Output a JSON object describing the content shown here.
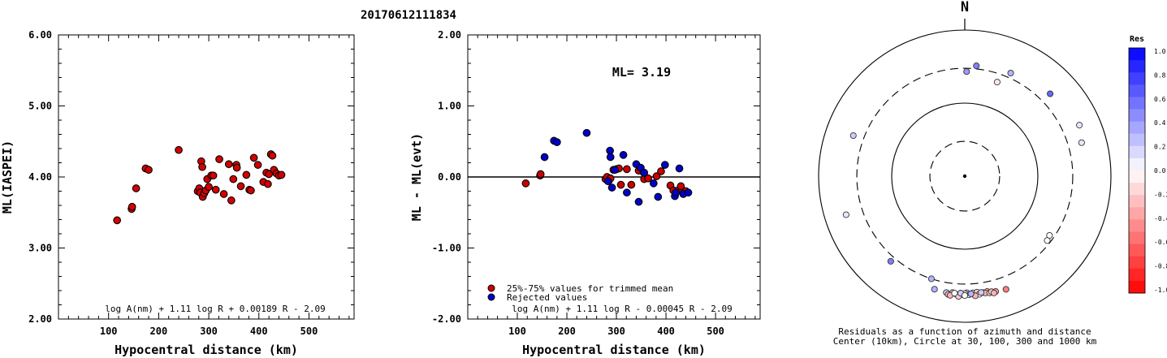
{
  "title": "20170612111834",
  "chart_data": [
    {
      "type": "scatter",
      "xlabel": "Hypocentral distance (km)",
      "ylabel": "ML(IASPEI)",
      "xlim": [
        0,
        590
      ],
      "ylim": [
        2.0,
        6.0
      ],
      "xticks": [
        "100",
        "200",
        "300",
        "400",
        "500"
      ],
      "yticks": [
        "2.00",
        "3.00",
        "4.00",
        "5.00",
        "6.00"
      ],
      "formula": "log A(nm) + 1.11 log R + 0.00189 R - 2.09",
      "points": [
        [
          117,
          3.39
        ],
        [
          146,
          3.55
        ],
        [
          147,
          3.58
        ],
        [
          155,
          3.84
        ],
        [
          174,
          4.12
        ],
        [
          180,
          4.1
        ],
        [
          240,
          4.38
        ],
        [
          278,
          3.8
        ],
        [
          281,
          3.84
        ],
        [
          283,
          3.78
        ],
        [
          285,
          4.22
        ],
        [
          287,
          4.14
        ],
        [
          288,
          3.72
        ],
        [
          291,
          3.77
        ],
        [
          294,
          3.81
        ],
        [
          297,
          3.97
        ],
        [
          300,
          3.86
        ],
        [
          305,
          4.02
        ],
        [
          309,
          4.02
        ],
        [
          314,
          3.82
        ],
        [
          321,
          4.25
        ],
        [
          330,
          3.76
        ],
        [
          340,
          4.18
        ],
        [
          345,
          3.67
        ],
        [
          349,
          3.97
        ],
        [
          355,
          4.17
        ],
        [
          356,
          4.13
        ],
        [
          364,
          3.87
        ],
        [
          375,
          4.03
        ],
        [
          381,
          3.82
        ],
        [
          384,
          3.81
        ],
        [
          390,
          4.27
        ],
        [
          398,
          4.17
        ],
        [
          409,
          3.93
        ],
        [
          415,
          4.06
        ],
        [
          420,
          4.04
        ],
        [
          424,
          4.32
        ],
        [
          427,
          4.3
        ],
        [
          430,
          4.1
        ],
        [
          435,
          4.05
        ],
        [
          440,
          4.02
        ],
        [
          445,
          4.03
        ],
        [
          418,
          3.9
        ]
      ]
    },
    {
      "type": "scatter",
      "xlabel": "Hypocentral distance (km)",
      "ylabel": "ML - ML(evt)",
      "xlim": [
        0,
        590
      ],
      "ylim": [
        -2.0,
        2.0
      ],
      "xticks": [
        "100",
        "200",
        "300",
        "400",
        "500"
      ],
      "yticks": [
        "-2.00",
        "-1.00",
        "0.00",
        "1.00",
        "2.00"
      ],
      "annotation": "ML= 3.19",
      "legend": [
        "25%-75% values for trimmed mean",
        "Rejected values"
      ],
      "legend_colors": [
        "#cc0000",
        "#0000cc"
      ],
      "formula": "log A(nm) + 1.11 log R - 0.00045 R - 2.09",
      "series": [
        {
          "name": "25%-75% values for trimmed mean",
          "points": [
            [
              117,
              -0.09
            ],
            [
              146,
              0.02
            ],
            [
              147,
              0.04
            ],
            [
              278,
              -0.03
            ],
            [
              281,
              0.0
            ],
            [
              285,
              -0.05
            ],
            [
              288,
              -0.02
            ],
            [
              294,
              0.1
            ],
            [
              300,
              0.11
            ],
            [
              305,
              0.12
            ],
            [
              309,
              -0.11
            ],
            [
              321,
              0.11
            ],
            [
              330,
              -0.11
            ],
            [
              345,
              0.09
            ],
            [
              356,
              -0.03
            ],
            [
              364,
              -0.02
            ],
            [
              381,
              0.01
            ],
            [
              390,
              0.08
            ],
            [
              409,
              -0.12
            ],
            [
              415,
              -0.19
            ],
            [
              424,
              -0.19
            ],
            [
              430,
              -0.13
            ],
            [
              440,
              -0.2
            ]
          ]
        },
        {
          "name": "Rejected values",
          "points": [
            [
              155,
              0.28
            ],
            [
              174,
              0.51
            ],
            [
              180,
              0.49
            ],
            [
              240,
              0.62
            ],
            [
              283,
              -0.06
            ],
            [
              287,
              0.37
            ],
            [
              288,
              0.28
            ],
            [
              291,
              -0.15
            ],
            [
              297,
              0.1
            ],
            [
              314,
              0.31
            ],
            [
              321,
              -0.22
            ],
            [
              340,
              0.18
            ],
            [
              345,
              -0.35
            ],
            [
              349,
              0.13
            ],
            [
              355,
              0.06
            ],
            [
              375,
              -0.09
            ],
            [
              384,
              -0.28
            ],
            [
              398,
              0.17
            ],
            [
              418,
              -0.27
            ],
            [
              420,
              -0.22
            ],
            [
              427,
              0.12
            ],
            [
              435,
              -0.24
            ],
            [
              445,
              -0.22
            ],
            [
              356,
              0.06
            ]
          ]
        }
      ]
    },
    {
      "type": "scatter",
      "subtype": "polar",
      "north_label": "N",
      "caption_line1": "Residuals as a function of azimuth and distance",
      "caption_line2": "Center (10km), Circle at 30, 100, 300 and 1000 km",
      "rings_km": [
        30,
        100,
        300,
        1000
      ],
      "colorbar_title": "Res",
      "colorbar_ticks": [
        "1.0",
        "0.8",
        "0.6",
        "0.4",
        "0.2",
        "0.0",
        "-0.2",
        "-0.4",
        "-0.6",
        "-0.8",
        "-1.0"
      ],
      "points": [
        {
          "az": 6,
          "dist": 330,
          "res": 0.5
        },
        {
          "az": 1,
          "dist": 270,
          "res": 0.4
        },
        {
          "az": 24,
          "dist": 350,
          "res": 0.3
        },
        {
          "az": 19,
          "dist": 230,
          "res": -0.1
        },
        {
          "az": 46,
          "dist": 420,
          "res": 0.6
        },
        {
          "az": 66,
          "dist": 520,
          "res": 0.1
        },
        {
          "az": 74,
          "dist": 460,
          "res": 0.1
        },
        {
          "az": -70,
          "dist": 420,
          "res": 0.2
        },
        {
          "az": -108,
          "dist": 510,
          "res": 0.1
        },
        {
          "az": -139,
          "dist": 350,
          "res": 0.5
        },
        {
          "az": -162,
          "dist": 300,
          "res": 0.3
        },
        {
          "az": 125,
          "dist": 260,
          "res": 0.0
        },
        {
          "az": 128,
          "dist": 270,
          "res": 0.0
        },
        {
          "az": -165,
          "dist": 400,
          "res": 0.3
        },
        {
          "az": -171,
          "dist": 410,
          "res": 0.2
        },
        {
          "az": -174,
          "dist": 400,
          "res": 0.3
        },
        {
          "az": 179,
          "dist": 395,
          "res": 0.2
        },
        {
          "az": 176,
          "dist": 400,
          "res": 0.1
        },
        {
          "az": 174,
          "dist": 395,
          "res": -0.2
        },
        {
          "az": 171,
          "dist": 410,
          "res": -0.1
        },
        {
          "az": 169,
          "dist": 405,
          "res": -0.3
        },
        {
          "az": 165,
          "dist": 430,
          "res": -0.4
        },
        {
          "az": -176,
          "dist": 420,
          "res": -0.2
        },
        {
          "az": -179,
          "dist": 420,
          "res": 0.0
        },
        {
          "az": 178,
          "dist": 420,
          "res": 0.0
        },
        {
          "az": -172,
          "dist": 430,
          "res": -0.3
        },
        {
          "az": 173,
          "dist": 425,
          "res": 0.0
        },
        {
          "az": 170,
          "dist": 420,
          "res": -0.3
        },
        {
          "az": 168,
          "dist": 430,
          "res": -0.2
        },
        {
          "az": 167,
          "dist": 420,
          "res": -0.2
        },
        {
          "az": -177,
          "dist": 445,
          "res": -0.2
        },
        {
          "az": -173,
          "dist": 440,
          "res": -0.3
        },
        {
          "az": 175,
          "dist": 440,
          "res": -0.3
        },
        {
          "az": 166,
          "dist": 445,
          "res": -0.3
        },
        {
          "az": -180,
          "dist": 405,
          "res": 0.1
        },
        {
          "az": 177,
          "dist": 410,
          "res": 0.3
        },
        {
          "az": -175,
          "dist": 405,
          "res": 0.0
        },
        {
          "az": -178,
          "dist": 400,
          "res": 0.2
        },
        {
          "az": 172,
          "dist": 405,
          "res": 0.2
        },
        {
          "az": 180,
          "dist": 430,
          "res": 0.0
        },
        {
          "az": 160,
          "dist": 445,
          "res": -0.5
        }
      ]
    }
  ]
}
